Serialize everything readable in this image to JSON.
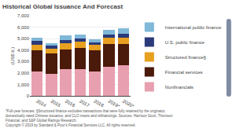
{
  "chart_data": {
    "type": "bar",
    "title": "Historical Global Issuance And Forecast",
    "categories": [
      "2014",
      "2015",
      "2016",
      "2017",
      "2018",
      "2019*",
      "2020*"
    ],
    "series": [
      {
        "name": "Nonfinancials",
        "color": "#e8a0b0",
        "values": [
          2100,
          1950,
          2300,
          2300,
          2150,
          2550,
          2650
        ]
      },
      {
        "name": "Financial services",
        "color": "#4a1a0a",
        "values": [
          1900,
          1750,
          1750,
          1900,
          1850,
          1950,
          1850
        ]
      },
      {
        "name": "Structured finance§",
        "color": "#e8a020",
        "values": [
          480,
          430,
          530,
          520,
          490,
          560,
          580
        ]
      },
      {
        "name": "U.S. public finance",
        "color": "#2a3a7a",
        "values": [
          320,
          230,
          320,
          280,
          180,
          310,
          320
        ]
      },
      {
        "name": "International public finance",
        "color": "#80b8d8",
        "values": [
          280,
          230,
          380,
          380,
          280,
          380,
          480
        ]
      }
    ],
    "stacked": true,
    "ylabel": "(US$ b.)",
    "ylim": [
      0,
      7000
    ],
    "yticks": [
      0,
      {
        "value": 1000,
        "label": "1,000"
      },
      {
        "value": 2000,
        "label": "2,000"
      },
      {
        "value": 3000,
        "label": "3,000"
      },
      {
        "value": 4000,
        "label": "4,000"
      },
      {
        "value": 5000,
        "label": "5,000"
      },
      {
        "value": 6000,
        "label": "6,000"
      },
      {
        "value": 7000,
        "label": "7,000"
      }
    ],
    "grid": true,
    "legend": "right",
    "annotations": [
      "*Full-year forecast. §Structured finance excludes transactions that were fully retained by the originator,",
      "domestically rated Chinese issuance, and CLO resets and refinancings. Sources: Harrison Scott, Thomson",
      "Financial, and S&P Global Ratings Research.",
      "Copyright © 2019 by Standard & Poor's Financial Services LLC. All rights reserved."
    ]
  }
}
